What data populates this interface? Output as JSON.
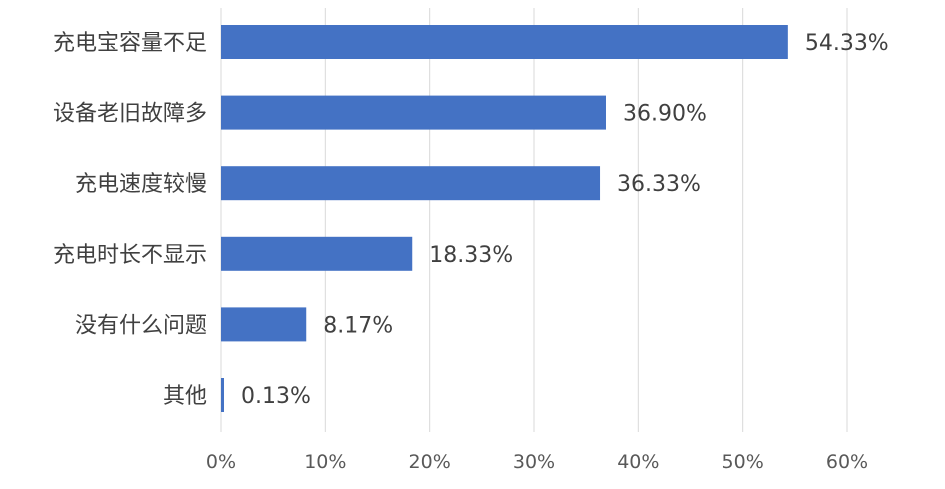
{
  "chart_data": {
    "type": "bar",
    "orientation": "horizontal",
    "categories": [
      "充电宝容量不足",
      "设备老旧故障多",
      "充电速度较慢",
      "充电时长不显示",
      "没有什么问题",
      "其他"
    ],
    "values": [
      54.33,
      36.9,
      36.33,
      18.33,
      8.17,
      0.13
    ],
    "value_labels": [
      "54.33%",
      "36.90%",
      "36.33%",
      "18.33%",
      "8.17%",
      "0.13%"
    ],
    "x_ticks": [
      0,
      10,
      20,
      30,
      40,
      50,
      60
    ],
    "x_tick_labels": [
      "0%",
      "10%",
      "20%",
      "30%",
      "40%",
      "50%",
      "60%"
    ],
    "xlim": [
      0,
      60
    ],
    "grid": true,
    "legend": "none",
    "bar_color": "#4472c4",
    "title": "",
    "xlabel": "",
    "ylabel": ""
  }
}
